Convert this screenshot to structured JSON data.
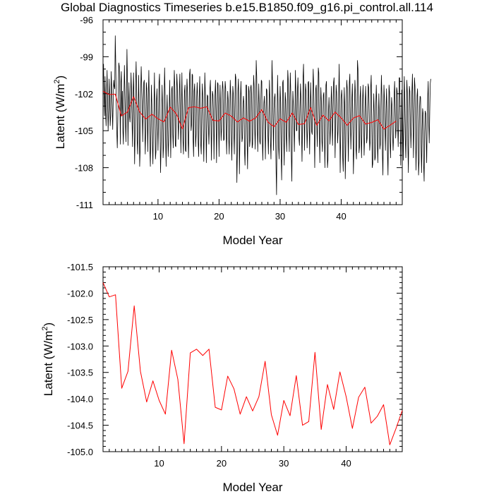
{
  "title": "Global Diagnostics Timeseries b.e15.B1850.f09_g16.pi_control.all.114",
  "chart_data": [
    {
      "type": "line",
      "xlabel": "Model Year",
      "ylabel": "Latent (W/m²)",
      "xlim": [
        1,
        50
      ],
      "ylim": [
        -111,
        -96
      ],
      "xticks": [
        10,
        20,
        30,
        40
      ],
      "yticks": [
        -96,
        -99,
        -102,
        -105,
        -108,
        -111
      ],
      "ytick_labels": [
        "-96",
        "-99",
        "-102",
        "-105",
        "-108",
        "-111"
      ],
      "grid": false,
      "series": [
        {
          "color": "#000000",
          "sampling": "monthly",
          "values": [
            -101.2,
            -99.6,
            -102.4,
            -103.8,
            -100.6,
            -103.5,
            -104.6,
            -101.9,
            -100.1,
            -102.8,
            -105.0,
            -103.3,
            -100.8,
            -102.3,
            -104.6,
            -103.8,
            -100.2,
            -101.5,
            -103.2,
            -104.9,
            -102.5,
            -100.9,
            -101.4,
            -101.6,
            -97.3,
            -99.6,
            -103.1,
            -105.0,
            -106.4,
            -104.2,
            -101.4,
            -99.5,
            -99.8,
            -102.2,
            -106.1,
            -101.1,
            -100.2,
            -103.8,
            -101.8,
            -105.0,
            -106.1,
            -102.5,
            -99.7,
            -101.8,
            -104.3,
            -105.9,
            -102.1,
            -98.4,
            -100.9,
            -106.2,
            -103.0,
            -101.1,
            -103.8,
            -104.3,
            -103.1,
            -100.3,
            -101.9,
            -104.3,
            -106.3,
            -102.0,
            -100.3,
            -103.5,
            -107.7,
            -105.4,
            -101.3,
            -99.4,
            -101.7,
            -105.8,
            -106.9,
            -103.4,
            -100.5,
            -103.4,
            -107.9,
            -106.5,
            -101.9,
            -99.8,
            -101.4,
            -102.8,
            -105.9,
            -103.0,
            -101.1,
            -100.9,
            -104.7,
            -106.9,
            -104.6,
            -101.1,
            -101.6,
            -104.3,
            -106.7,
            -102.4,
            -100.1,
            -102.8,
            -106.4,
            -107.9,
            -104.9,
            -101.3,
            -102.9,
            -106.1,
            -107.7,
            -104.6,
            -103.3,
            -100.3,
            -104.0,
            -107.3,
            -106.7,
            -102.6,
            -101.6,
            -104.4,
            -106.6,
            -104.0,
            -101.1,
            -100.4,
            -104.5,
            -108.4,
            -106.5,
            -104.1,
            -101.3,
            -103.0,
            -107.2,
            -106.3,
            -102.6,
            -99.9,
            -102.1,
            -105.8,
            -107.9,
            -103.7,
            -102.1,
            -104.6,
            -107.1,
            -105.8,
            -103.6,
            -100.9,
            -103.8,
            -107.2,
            -104.2,
            -101.6,
            -101.4,
            -105.3,
            -106.4,
            -103.1,
            -100.1,
            -101.3,
            -106.2,
            -106.3,
            -103.0,
            -100.4,
            -101.4,
            -103.8,
            -105.7,
            -104.0,
            -101.7,
            -100.4,
            -103.9,
            -106.8,
            -103.6,
            -100.3,
            -103.4,
            -105.8,
            -106.9,
            -103.7,
            -101.8,
            -101.3,
            -106.6,
            -106.7,
            -102.4,
            -100.8,
            -101.9,
            -105.5,
            -107.2,
            -104.3,
            -100.4,
            -100.0,
            -103.3,
            -105.0,
            -104.5,
            -100.4,
            -100.5,
            -105.8,
            -107.1,
            -101.8,
            -101.2,
            -103.5,
            -106.3,
            -105.3,
            -102.3,
            -101.1,
            -102.6,
            -106.0,
            -107.1,
            -102.4,
            -100.6,
            -103.1,
            -106.1,
            -106.9,
            -103.4,
            -101.2,
            -102.3,
            -105.2,
            -107.5,
            -104.3,
            -100.3,
            -101.9,
            -103.8,
            -107.6,
            -104.6,
            -102.1,
            -102.2,
            -104.6,
            -106.1,
            -104.5,
            -101.6,
            -100.9,
            -104.3,
            -107.4,
            -104.2,
            -101.8,
            -102.1,
            -103.4,
            -107.3,
            -104.3,
            -102.1,
            -100.9,
            -103.4,
            -107.6,
            -104.4,
            -101.1,
            -101.2,
            -104.1,
            -107.1,
            -103.2,
            -101.3,
            -103.6,
            -105.8,
            -104.9,
            -101.9,
            -101.0,
            -101.7,
            -105.8,
            -105.7,
            -102.5,
            -101.0,
            -101.6,
            -105.1,
            -106.9,
            -103.8,
            -101.8,
            -102.5,
            -105.7,
            -106.9,
            -103.7,
            -100.9,
            -102.1,
            -105.0,
            -107.4,
            -104.9,
            -101.4,
            -102.0,
            -105.2,
            -106.9,
            -103.1,
            -100.4,
            -100.7,
            -105.1,
            -109.2,
            -106.8,
            -101.8,
            -100.8,
            -103.2,
            -108.5,
            -105.7,
            -102.5,
            -101.0,
            -103.2,
            -105.9,
            -105.6,
            -103.2,
            -102.2,
            -102.8,
            -106.6,
            -107.8,
            -105.1,
            -101.3,
            -101.3,
            -105.6,
            -108.1,
            -104.7,
            -101.4,
            -101.8,
            -106.3,
            -105.8,
            -101.5,
            -101.3,
            -102.2,
            -106.4,
            -106.1,
            -102.5,
            -100.5,
            -101.4,
            -104.8,
            -106.5,
            -103.3,
            -99.3,
            -100.6,
            -104.1,
            -106.7,
            -104.2,
            -101.2,
            -102.8,
            -105.9,
            -106.1,
            -102.7,
            -100.9,
            -101.0,
            -105.7,
            -107.4,
            -104.7,
            -102.8,
            -102.2,
            -103.8,
            -107.3,
            -104.6,
            -101.6,
            -101.7,
            -103.7,
            -105.5,
            -106.9,
            -103.3,
            -100.9,
            -102.9,
            -105.9,
            -107.3,
            -104.1,
            -99.3,
            -101.0,
            -104.3,
            -106.6,
            -103.2,
            -102.3,
            -102.0,
            -105.3,
            -108.0,
            -110.2,
            -104.3,
            -100.5,
            -102.7,
            -106.4,
            -107.3,
            -103.8,
            -101.4,
            -102.7,
            -106.9,
            -109.0,
            -104.7,
            -101.1,
            -100.9,
            -105.4,
            -107.8,
            -104.5,
            -101.9,
            -102.6,
            -105.4,
            -106.7,
            -103.5,
            -100.1,
            -100.9,
            -105.0,
            -106.7,
            -102.4,
            -100.3,
            -102.1,
            -106.9,
            -109.1,
            -104.9,
            -101.8,
            -102.8,
            -104.3,
            -106.7,
            -104.0,
            -100.1,
            -101.9,
            -105.0,
            -105.0,
            -101.8,
            -100.7,
            -102.6,
            -105.6,
            -106.2,
            -103.2,
            -101.2,
            -102.4,
            -104.8,
            -107.5,
            -104.6,
            -100.7,
            -99.6,
            -103.7,
            -106.6,
            -103.3,
            -101.2,
            -101.8,
            -104.2,
            -106.4,
            -104.9,
            -101.1,
            -101.0,
            -104.3,
            -106.9,
            -103.4,
            -101.1,
            -103.1,
            -105.1,
            -105.3,
            -102.4,
            -100.0,
            -101.4,
            -104.8,
            -108.0,
            -104.3,
            -101.6,
            -101.3,
            -104.6,
            -106.3,
            -103.4,
            -99.9,
            -100.3,
            -104.7,
            -107.6,
            -104.2,
            -101.5,
            -102.6,
            -105.8,
            -106.7,
            -103.9,
            -102.1,
            -101.9,
            -105.3,
            -108.0,
            -104.8,
            -101.3,
            -101.0,
            -103.7,
            -108.0,
            -107.4,
            -103.6,
            -102.3,
            -103.6,
            -106.1,
            -104.9,
            -102.6,
            -101.4,
            -104.4,
            -106.2,
            -103.2,
            -101.1,
            -100.7,
            -103.6,
            -107.2,
            -104.4,
            -101.3,
            -101.9,
            -103.5,
            -106.0,
            -105.0,
            -102.3,
            -99.6,
            -103.0,
            -108.4,
            -105.6,
            -102.4,
            -101.7,
            -102.5,
            -107.2,
            -108.3,
            -104.4,
            -101.5,
            -103.2,
            -108.9,
            -106.5,
            -102.6,
            -100.9,
            -101.6,
            -104.6,
            -107.5,
            -104.4,
            -101.1,
            -100.4,
            -104.0,
            -106.5,
            -104.6,
            -102.3,
            -101.2,
            -104.6,
            -108.5,
            -106.3,
            -103.1,
            -100.9,
            -102.0,
            -106.5,
            -107.3,
            -103.5,
            -99.3,
            -100.0,
            -103.8,
            -106.8,
            -106.3,
            -102.3,
            -101.4,
            -105.3,
            -107.2,
            -104.5,
            -102.5,
            -101.3,
            -103.5,
            -107.0,
            -105.7,
            -103.0,
            -101.4,
            -103.2,
            -106.0,
            -105.6,
            -103.1,
            -101.2,
            -101.5,
            -104.1,
            -106.6,
            -105.9,
            -101.5,
            -100.5,
            -104.0,
            -108.0,
            -107.7,
            -104.3,
            -102.0,
            -103.5,
            -107.4,
            -107.2,
            -103.0,
            -101.3,
            -103.0,
            -106.0,
            -107.6,
            -104.7,
            -102.0,
            -103.6,
            -106.5,
            -106.1,
            -102.9,
            -100.5,
            -102.2,
            -106.9,
            -108.6,
            -104.4,
            -101.3,
            -102.4,
            -104.7,
            -106.6,
            -103.8,
            -101.6,
            -103.3,
            -106.9,
            -108.6,
            -104.4,
            -101.3,
            -101.9,
            -105.9,
            -107.2,
            -104.4,
            -102.3,
            -103.0,
            -105.3,
            -106.6,
            -105.5,
            -102.1,
            -101.0,
            -103.4,
            -105.6,
            -104.8,
            -101.5,
            -101.8,
            -104.6,
            -106.3,
            -103.7,
            -100.7,
            -100.7,
            -104.5,
            -107.8,
            -104.4,
            -101.7,
            -101.9,
            -104.5,
            -107.4,
            -104.2,
            -100.6,
            -102.3,
            -105.7,
            -107.2,
            -104.2,
            -100.9,
            -101.9,
            -106.2,
            -108.4,
            -104.3,
            -101.4,
            -101.8,
            -104.4,
            -106.4,
            -104.5,
            -101.8,
            -100.4,
            -104.1,
            -107.2,
            -104.0,
            -100.7,
            -101.4,
            -104.8,
            -108.2,
            -106.1,
            -102.2,
            -101.6,
            -104.1,
            -108.6,
            -107.5,
            -103.1,
            -102.2,
            -102.3,
            -106.4,
            -108.4,
            -105.0,
            -103.2,
            -103.6,
            -107.8,
            -109.1,
            -105.1,
            -103.4,
            -103.6,
            -105.7,
            -107.6,
            -104.5,
            -102.3,
            -101.0,
            -104.4,
            -106.0,
            -103.5,
            -101.2,
            -100.8
          ]
        },
        {
          "color": "#ff0000",
          "sampling": "annual",
          "x": [
            1,
            2,
            3,
            4,
            5,
            6,
            7,
            8,
            9,
            10,
            11,
            12,
            13,
            14,
            15,
            16,
            17,
            18,
            19,
            20,
            21,
            22,
            23,
            24,
            25,
            26,
            27,
            28,
            29,
            30,
            31,
            32,
            33,
            34,
            35,
            36,
            37,
            38,
            39,
            40,
            41,
            42,
            43,
            44,
            45,
            46,
            47,
            48,
            49
          ],
          "values": [
            -101.8,
            -102.07,
            -102.03,
            -103.8,
            -103.48,
            -102.24,
            -103.48,
            -104.06,
            -103.66,
            -104.03,
            -104.29,
            -103.08,
            -103.63,
            -104.85,
            -103.13,
            -103.06,
            -103.18,
            -103.06,
            -104.16,
            -104.21,
            -103.57,
            -103.81,
            -104.29,
            -103.96,
            -104.23,
            -103.96,
            -103.29,
            -104.3,
            -104.69,
            -104.03,
            -104.32,
            -103.56,
            -104.5,
            -104.43,
            -103.12,
            -104.58,
            -103.73,
            -104.2,
            -103.49,
            -103.96,
            -104.56,
            -103.97,
            -103.78,
            -104.46,
            -104.33,
            -104.11,
            -104.87,
            -104.56,
            -104.22
          ]
        }
      ]
    },
    {
      "type": "line",
      "xlabel": "Model Year",
      "ylabel": "Latent (W/m²)",
      "xlim": [
        1,
        49
      ],
      "ylim": [
        -105.0,
        -101.5
      ],
      "xticks": [
        10,
        20,
        30,
        40
      ],
      "yticks": [
        -101.5,
        -102.0,
        -102.5,
        -103.0,
        -103.5,
        -104.0,
        -104.5,
        -105.0
      ],
      "ytick_labels": [
        "-101.5",
        "-102.0",
        "-102.5",
        "-103.0",
        "-103.5",
        "-104.0",
        "-104.5",
        "-105.0"
      ],
      "grid": false,
      "series": [
        {
          "color": "#ff0000",
          "x": [
            1,
            2,
            3,
            4,
            5,
            6,
            7,
            8,
            9,
            10,
            11,
            12,
            13,
            14,
            15,
            16,
            17,
            18,
            19,
            20,
            21,
            22,
            23,
            24,
            25,
            26,
            27,
            28,
            29,
            30,
            31,
            32,
            33,
            34,
            35,
            36,
            37,
            38,
            39,
            40,
            41,
            42,
            43,
            44,
            45,
            46,
            47,
            48,
            49
          ],
          "values": [
            -101.8,
            -102.07,
            -102.03,
            -103.8,
            -103.48,
            -102.24,
            -103.48,
            -104.06,
            -103.66,
            -104.03,
            -104.29,
            -103.08,
            -103.63,
            -104.85,
            -103.13,
            -103.06,
            -103.18,
            -103.06,
            -104.16,
            -104.21,
            -103.57,
            -103.81,
            -104.29,
            -103.96,
            -104.23,
            -103.96,
            -103.29,
            -104.3,
            -104.69,
            -104.03,
            -104.32,
            -103.56,
            -104.5,
            -104.43,
            -103.12,
            -104.58,
            -103.73,
            -104.2,
            -103.49,
            -103.96,
            -104.56,
            -103.97,
            -103.78,
            -104.46,
            -104.33,
            -104.11,
            -104.87,
            -104.56,
            -104.22
          ]
        }
      ]
    }
  ]
}
